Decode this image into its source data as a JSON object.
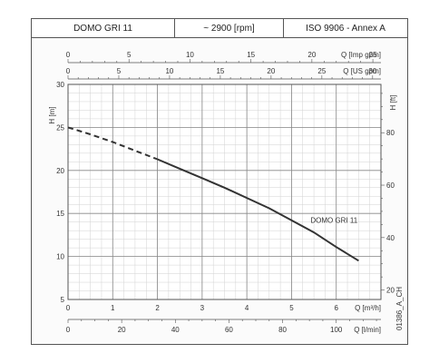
{
  "header": {
    "model": "DOMO GRI 11",
    "speed": "~ 2900 [rpm]",
    "standard": "ISO 9906 - Annex A"
  },
  "chart_data": {
    "type": "line",
    "title": "",
    "series": [
      {
        "name": "DOMO GRI 11",
        "x": [
          0,
          0.5,
          1,
          1.5,
          2,
          2.5,
          3,
          3.5,
          4,
          4.5,
          5,
          5.5,
          6,
          6.5
        ],
        "y": [
          25.0,
          24.2,
          23.3,
          22.3,
          21.3,
          20.2,
          19.1,
          18.0,
          16.8,
          15.6,
          14.2,
          12.8,
          11.1,
          9.5
        ],
        "dashed_until_x": 2.4
      }
    ],
    "x_axis": {
      "label": "Q [m³/h]",
      "range": [
        0,
        7
      ],
      "ticks": [
        0,
        1,
        2,
        3,
        4,
        5,
        6
      ]
    },
    "y_axis": {
      "label": "H [m]",
      "range": [
        5,
        30
      ],
      "ticks": [
        5,
        10,
        15,
        20,
        25,
        30
      ]
    },
    "secondary_axes": {
      "imp_gpm": {
        "label": "Q [Imp gpm]",
        "ticks": [
          0,
          5,
          10,
          15,
          20,
          25
        ]
      },
      "us_gpm": {
        "label": "Q [US gpm]",
        "ticks": [
          0,
          5,
          10,
          15,
          20,
          25,
          30
        ]
      },
      "l_min": {
        "label": "Q [l/min]",
        "ticks": [
          0,
          20,
          40,
          60,
          80,
          100
        ]
      },
      "ft": {
        "label": "H [ft]",
        "ticks": [
          20,
          40,
          60,
          80
        ]
      }
    },
    "grid": true,
    "code": "01386_A_CH"
  }
}
